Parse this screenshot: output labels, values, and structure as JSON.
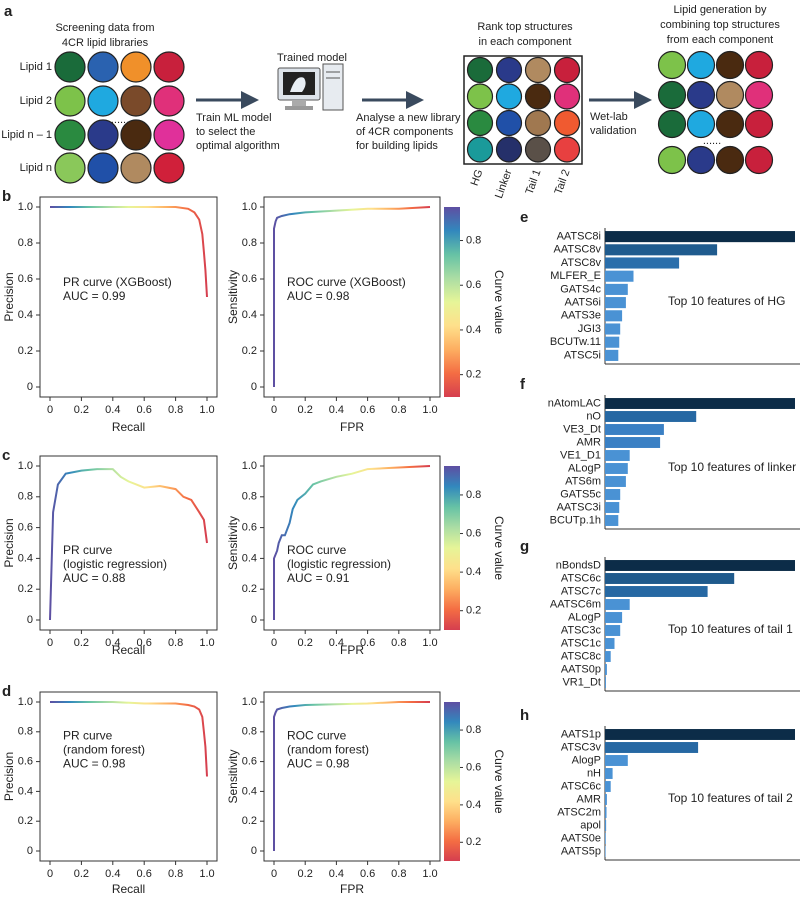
{
  "diagram": {
    "panel": "a",
    "libraries": {
      "title": [
        "Screening data from",
        "4CR lipid libraries"
      ],
      "rows": [
        "Lipid 1",
        "Lipid 2",
        "......",
        "Lipid n – 1",
        "Lipid n"
      ]
    },
    "step1": [
      "Train ML model",
      "to select the",
      "optimal algorithm"
    ],
    "model": "Trained model",
    "step2": [
      "Analyse a new library",
      "of 4CR components",
      "for building lipids"
    ],
    "rank": {
      "title": [
        "Rank top structures",
        "in each component"
      ],
      "columns": [
        "HG",
        "Linker",
        "Tail 1",
        "Tail 2"
      ]
    },
    "step3": [
      "Wet-lab",
      "validation"
    ],
    "generation": {
      "title": [
        "Lipid generation by",
        "combining top structures",
        "from each component"
      ],
      "dots": "......"
    }
  },
  "chart_data": [
    {
      "type": "line",
      "label": "b",
      "xlabel": "Recall",
      "ylabel": "Precision",
      "annotation": [
        "PR curve (XGBoost)",
        "AUC = 0.99"
      ],
      "x": [
        0,
        0.2,
        0.4,
        0.6,
        0.8,
        0.88,
        0.92,
        0.95,
        0.97,
        0.98,
        0.99,
        1
      ],
      "values": [
        1,
        1,
        1,
        1,
        1,
        0.99,
        0.97,
        0.93,
        0.85,
        0.75,
        0.65,
        0.5
      ],
      "xlim": [
        0,
        1
      ],
      "ylim": [
        0,
        1
      ],
      "xticks": [
        0,
        0.2,
        0.4,
        0.6,
        0.8,
        {
          "value": 1,
          "label": "1.0"
        }
      ],
      "yticks": [
        0,
        0.2,
        0.4,
        0.6,
        0.8,
        {
          "value": 1,
          "label": "1.0"
        }
      ],
      "colormap": [
        "#5e4fa2",
        "#3288bd",
        "#66c2a5",
        "#abdda4",
        "#e6f598",
        "#fee08b",
        "#fdae61",
        "#f46d43",
        "#d53e4f"
      ]
    },
    {
      "type": "line",
      "xlabel": "FPR",
      "ylabel": "Sensitivity",
      "annotation": [
        "ROC curve (XGBoost)",
        "AUC = 0.98"
      ],
      "x": [
        0,
        0,
        0.01,
        0.02,
        0.05,
        0.1,
        0.2,
        0.4,
        0.6,
        0.8,
        1
      ],
      "values": [
        0,
        0.88,
        0.92,
        0.94,
        0.95,
        0.96,
        0.97,
        0.98,
        0.99,
        0.99,
        1
      ],
      "xlim": [
        0,
        1
      ],
      "ylim": [
        0,
        1
      ],
      "xticks": [
        0,
        0.2,
        0.4,
        0.6,
        0.8,
        {
          "value": 1,
          "label": "1.0"
        }
      ],
      "yticks": [
        0,
        0.2,
        0.4,
        0.6,
        0.8,
        {
          "value": 1,
          "label": "1.0"
        }
      ],
      "colormap": [
        "#5e4fa2",
        "#3288bd",
        "#66c2a5",
        "#abdda4",
        "#e6f598",
        "#fee08b",
        "#fdae61",
        "#f46d43",
        "#d53e4f"
      ],
      "colorbar": {
        "label": "Curve value",
        "lim": [
          0.1,
          0.95
        ],
        "ticks": [
          0.2,
          0.4,
          0.6,
          0.8
        ]
      }
    },
    {
      "type": "line",
      "label": "c",
      "xlabel": "Recall",
      "ylabel": "Precision",
      "annotation": [
        "PR curve",
        "(logistic regression)",
        "AUC = 0.88"
      ],
      "x": [
        0,
        0.02,
        0.05,
        0.1,
        0.2,
        0.3,
        0.4,
        0.45,
        0.5,
        0.6,
        0.7,
        0.8,
        0.85,
        0.9,
        0.95,
        0.98,
        1
      ],
      "values": [
        0,
        0.7,
        0.88,
        0.95,
        0.97,
        0.98,
        0.98,
        0.93,
        0.9,
        0.86,
        0.87,
        0.85,
        0.8,
        0.78,
        0.7,
        0.65,
        0.5
      ],
      "xlim": [
        0,
        1
      ],
      "ylim": [
        0,
        1
      ],
      "xticks": [
        0,
        0.2,
        0.4,
        0.6,
        0.8,
        {
          "value": 1,
          "label": "1.0"
        }
      ],
      "yticks": [
        0,
        0.2,
        0.4,
        0.6,
        0.8,
        {
          "value": 1,
          "label": "1.0"
        }
      ],
      "colormap": [
        "#5e4fa2",
        "#3288bd",
        "#66c2a5",
        "#abdda4",
        "#e6f598",
        "#fee08b",
        "#fdae61",
        "#f46d43",
        "#d53e4f"
      ]
    },
    {
      "type": "line",
      "xlabel": "FPR",
      "ylabel": "Sensitivity",
      "annotation": [
        "ROC curve",
        "(logistic regression)",
        "AUC = 0.91"
      ],
      "x": [
        0,
        0,
        0.02,
        0.03,
        0.05,
        0.07,
        0.1,
        0.12,
        0.15,
        0.2,
        0.25,
        0.3,
        0.4,
        0.5,
        0.6,
        0.8,
        1
      ],
      "values": [
        0,
        0.4,
        0.45,
        0.5,
        0.55,
        0.55,
        0.63,
        0.72,
        0.78,
        0.82,
        0.88,
        0.9,
        0.93,
        0.95,
        0.98,
        0.99,
        1
      ],
      "xlim": [
        0,
        1
      ],
      "ylim": [
        0,
        1
      ],
      "xticks": [
        0,
        0.2,
        0.4,
        0.6,
        0.8,
        {
          "value": 1,
          "label": "1.0"
        }
      ],
      "yticks": [
        0,
        0.2,
        0.4,
        0.6,
        0.8,
        {
          "value": 1,
          "label": "1.0"
        }
      ],
      "colormap": [
        "#5e4fa2",
        "#3288bd",
        "#66c2a5",
        "#abdda4",
        "#e6f598",
        "#fee08b",
        "#fdae61",
        "#f46d43",
        "#d53e4f"
      ],
      "colorbar": {
        "label": "Curve value",
        "lim": [
          0.1,
          0.95
        ],
        "ticks": [
          0.2,
          0.4,
          0.6,
          0.8
        ]
      }
    },
    {
      "type": "line",
      "label": "d",
      "xlabel": "Recall",
      "ylabel": "Precision",
      "annotation": [
        "PR curve",
        "(random forest)",
        "AUC = 0.98"
      ],
      "x": [
        0,
        0.2,
        0.4,
        0.6,
        0.8,
        0.88,
        0.92,
        0.95,
        0.97,
        0.98,
        0.99,
        1
      ],
      "values": [
        1,
        1,
        1,
        0.99,
        0.99,
        0.98,
        0.97,
        0.95,
        0.9,
        0.8,
        0.7,
        0.5
      ],
      "xlim": [
        0,
        1
      ],
      "ylim": [
        0,
        1
      ],
      "xticks": [
        0,
        0.2,
        0.4,
        0.6,
        0.8,
        {
          "value": 1,
          "label": "1.0"
        }
      ],
      "yticks": [
        0,
        0.2,
        0.4,
        0.6,
        0.8,
        {
          "value": 1,
          "label": "1.0"
        }
      ],
      "colormap": [
        "#5e4fa2",
        "#3288bd",
        "#66c2a5",
        "#abdda4",
        "#e6f598",
        "#fee08b",
        "#fdae61",
        "#f46d43",
        "#d53e4f"
      ]
    },
    {
      "type": "line",
      "xlabel": "FPR",
      "ylabel": "Sensitivity",
      "annotation": [
        "ROC curve",
        "(random forest)",
        "AUC = 0.98"
      ],
      "x": [
        0,
        0,
        0.01,
        0.02,
        0.05,
        0.1,
        0.2,
        0.4,
        0.6,
        0.8,
        1
      ],
      "values": [
        0,
        0.9,
        0.93,
        0.95,
        0.96,
        0.97,
        0.98,
        0.985,
        0.99,
        1,
        1
      ],
      "xlim": [
        0,
        1
      ],
      "ylim": [
        0,
        1
      ],
      "xticks": [
        0,
        0.2,
        0.4,
        0.6,
        0.8,
        {
          "value": 1,
          "label": "1.0"
        }
      ],
      "yticks": [
        0,
        0.2,
        0.4,
        0.6,
        0.8,
        {
          "value": 1,
          "label": "1.0"
        }
      ],
      "colormap": [
        "#5e4fa2",
        "#3288bd",
        "#66c2a5",
        "#abdda4",
        "#e6f598",
        "#fee08b",
        "#fdae61",
        "#f46d43",
        "#d53e4f"
      ],
      "colorbar": {
        "label": "Curve value",
        "lim": [
          0.1,
          0.95
        ],
        "ticks": [
          0.2,
          0.4,
          0.6,
          0.8
        ]
      }
    },
    {
      "type": "hbar",
      "label": "e",
      "annotation": "Top 10 features of HG",
      "categories": [
        "AATSC8i",
        "AATSC8v",
        "ATSC8v",
        "MLFER_E",
        "GATS4c",
        "AATS6i",
        "AATS3e",
        "JGI3",
        "BCUTw.11",
        "ATSC5i"
      ],
      "values": [
        1,
        0.59,
        0.39,
        0.15,
        0.12,
        0.11,
        0.09,
        0.08,
        0.075,
        0.07
      ],
      "xlim": [
        0,
        1
      ],
      "colors": [
        "#0c2c48",
        "#1f5b8e",
        "#2a6eab",
        "#4a92d4",
        "#4a92d4",
        "#4a92d4",
        "#4a92d4",
        "#4a92d4",
        "#4a92d4",
        "#4a92d4"
      ]
    },
    {
      "type": "hbar",
      "label": "f",
      "annotation": "Top 10 features of linker",
      "categories": [
        "nAtomLAC",
        "nO",
        "VE3_Dt",
        "AMR",
        "VE1_D1",
        "ALogP",
        "ATS6m",
        "GATS5c",
        "AATSC3i",
        "BCUTp.1h"
      ],
      "values": [
        1,
        0.48,
        0.31,
        0.29,
        0.13,
        0.12,
        0.11,
        0.08,
        0.075,
        0.07
      ],
      "xlim": [
        0,
        1
      ],
      "colors": [
        "#0c2c48",
        "#2668a3",
        "#3a80c4",
        "#3a80c4",
        "#4a92d4",
        "#4a92d4",
        "#4a92d4",
        "#4a92d4",
        "#4a92d4",
        "#4a92d4"
      ]
    },
    {
      "type": "hbar",
      "label": "g",
      "annotation": "Top 10 features of tail 1",
      "categories": [
        "nBondsD",
        "ATSC6c",
        "ATSC7c",
        "AATSC6m",
        "ALogP",
        "ATSC3c",
        "ATSC1c",
        "ATSC8c",
        "AATS0p",
        "VR1_Dt"
      ],
      "values": [
        1,
        0.68,
        0.54,
        0.13,
        0.09,
        0.08,
        0.05,
        0.03,
        0.01,
        0.005
      ],
      "xlim": [
        0,
        1
      ],
      "colors": [
        "#0c2c48",
        "#1f5a8c",
        "#2668a3",
        "#4a92d4",
        "#4a92d4",
        "#4a92d4",
        "#4a92d4",
        "#4a92d4",
        "#4a92d4",
        "#4a92d4"
      ]
    },
    {
      "type": "hbar",
      "label": "h",
      "annotation": "Top 10 features of tail 2",
      "categories": [
        "AATS1p",
        "ATSC3v",
        "AlogP",
        "nH",
        "ATSC6c",
        "AMR",
        "ATSC2m",
        "apol",
        "AATS0e",
        "AATS5p"
      ],
      "values": [
        1,
        0.49,
        0.12,
        0.04,
        0.03,
        0.01,
        0.008,
        0.006,
        0.004,
        0.003
      ],
      "xlim": [
        0,
        1
      ],
      "colors": [
        "#0c2c48",
        "#2668a3",
        "#4a92d4",
        "#4a92d4",
        "#4a92d4",
        "#4a92d4",
        "#4a92d4",
        "#4a92d4",
        "#4a92d4",
        "#4a92d4"
      ]
    }
  ]
}
